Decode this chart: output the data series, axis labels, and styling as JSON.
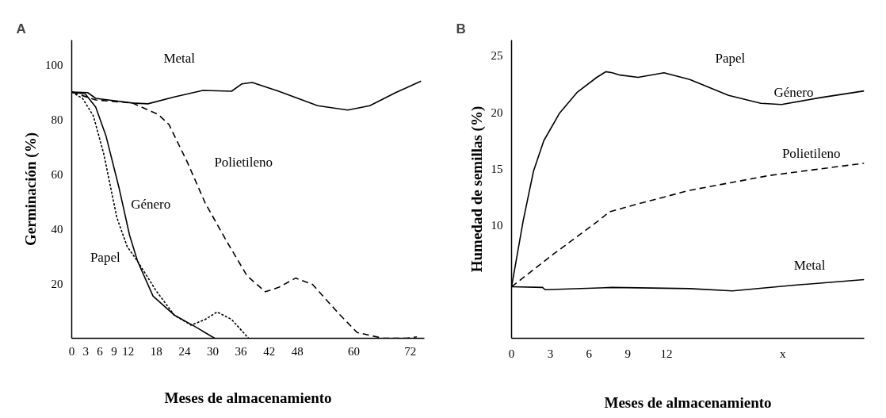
{
  "chart_data": [
    {
      "type": "line",
      "title": "A",
      "xlabel": "Meses de almacenamiento",
      "ylabel": "Germinación (%)",
      "xlim": [
        0,
        75
      ],
      "xticks": [
        0,
        3,
        6,
        9,
        12,
        18,
        24,
        30,
        36,
        42,
        48,
        60,
        72
      ],
      "ylim": [
        0,
        109
      ],
      "yticks": [
        20,
        40,
        60,
        80,
        100
      ],
      "series": [
        {
          "name": "Metal",
          "color": "#000000",
          "line_style": "solid",
          "x": [
            0,
            3.4,
            5.1,
            12.9,
            16.2,
            21.8,
            27.9,
            34,
            36.2,
            38.4,
            44,
            52.3,
            58.7,
            63.4,
            68.9,
            74.3
          ],
          "values": [
            90,
            89.8,
            87.7,
            86,
            85.7,
            88.2,
            90.6,
            90.3,
            93,
            93.5,
            90.3,
            85,
            83.4,
            85,
            89.8,
            94
          ]
        },
        {
          "name": "Polietileno",
          "color": "#000000",
          "line_style": "dashed",
          "x": [
            0,
            5.1,
            12.9,
            18.4,
            20.7,
            24.6,
            28.4,
            32.9,
            37.3,
            41.2,
            44,
            47.6,
            51.2,
            56.8,
            60.7,
            66.2,
            71.2,
            73.4
          ],
          "values": [
            90,
            87.1,
            86,
            81.8,
            78.1,
            64.3,
            49.4,
            35.6,
            22.8,
            17,
            18.6,
            22,
            19.7,
            9,
            2.1,
            0,
            0,
            0.5
          ]
        },
        {
          "name": "Género",
          "color": "#000000",
          "line_style": "solid",
          "x": [
            0,
            2.9,
            5.1,
            7.3,
            10.1,
            12.3,
            14,
            17.3,
            21.8,
            26.2,
            30.4
          ],
          "values": [
            90,
            89.3,
            84.5,
            73.9,
            54.7,
            37.7,
            28.2,
            15.4,
            8.5,
            4.3,
            0
          ]
        },
        {
          "name": "Papel",
          "color": "#000000",
          "line_style": "dotted",
          "x": [
            0,
            2.3,
            4.6,
            6.8,
            9.6,
            11.8,
            14,
            17.9,
            21.8,
            25.4,
            28.4,
            30.9,
            34,
            37.6
          ],
          "values": [
            90,
            87.7,
            81.3,
            67.5,
            44.1,
            33.5,
            28.2,
            17.5,
            8.5,
            4.8,
            6.9,
            9.6,
            6.9,
            0
          ]
        }
      ]
    },
    {
      "type": "line",
      "title": "B",
      "xlabel": "Meses de almacenamiento",
      "ylabel": "Humedad de semillas (%)",
      "xlim": [
        0,
        27.3
      ],
      "xticks": [
        0,
        3,
        6,
        9,
        12,
        {
          "value": 21,
          "label": "x"
        }
      ],
      "ylim": [
        0,
        26.4
      ],
      "yticks": [
        10,
        15,
        20,
        25
      ],
      "annotations": [
        "Papel"
      ],
      "series": [
        {
          "name": "Género",
          "color": "#000000",
          "line_style": "solid",
          "x": [
            0,
            0.9,
            1.7,
            2.5,
            3.7,
            5.1,
            6.6,
            7.3,
            7.8,
            8.4,
            9.8,
            11.8,
            13.8,
            16.8,
            19.3,
            20.9,
            23.9,
            27.3
          ],
          "values": [
            4.56,
            10.4,
            14.8,
            17.5,
            19.9,
            21.8,
            23.1,
            23.6,
            23.5,
            23.3,
            23.1,
            23.5,
            22.9,
            21.5,
            20.8,
            20.7,
            21.3,
            21.9
          ]
        },
        {
          "name": "Polietileno",
          "color": "#000000",
          "line_style": "dashed",
          "x": [
            0,
            3.3,
            6.6,
            7.6,
            9.8,
            13.8,
            19.9,
            27.3
          ],
          "values": [
            4.56,
            7.5,
            10.3,
            11.2,
            11.9,
            13.1,
            14.4,
            15.5
          ]
        },
        {
          "name": "Metal",
          "color": "#000000",
          "line_style": "solid",
          "x": [
            0,
            2.4,
            2.6,
            7.8,
            13.8,
            17.1,
            21.9,
            27.3
          ],
          "values": [
            4.56,
            4.5,
            4.3,
            4.5,
            4.4,
            4.2,
            4.7,
            5.2
          ]
        }
      ]
    }
  ]
}
